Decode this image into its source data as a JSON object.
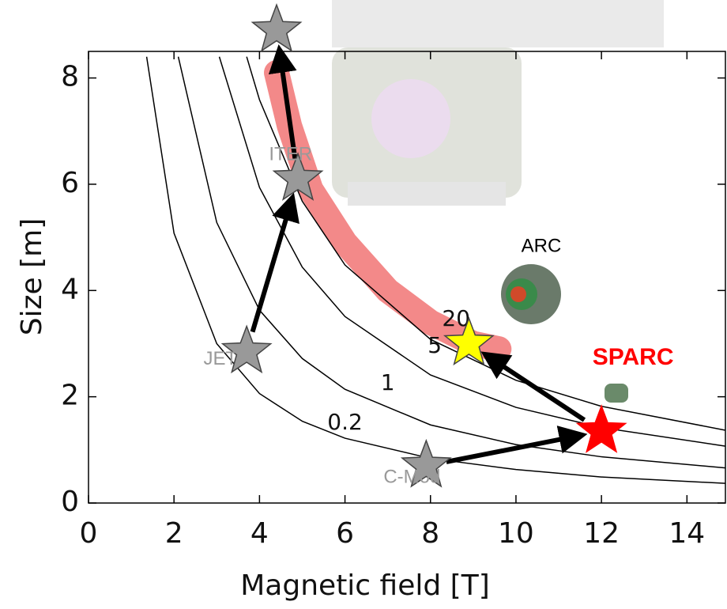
{
  "chart_data": {
    "type": "line",
    "x_label": "Magnetic field [T]",
    "y_label": "Size [m]",
    "xlim": [
      0,
      14.9
    ],
    "ylim": [
      0,
      8.5
    ],
    "xticks": [
      0,
      2,
      4,
      6,
      8,
      10,
      12,
      14
    ],
    "yticks": [
      0,
      2,
      4,
      6,
      8
    ],
    "series": [
      {
        "name": "0.2",
        "color": "#000000",
        "x": [
          1.36,
          2,
          3,
          4,
          5,
          6,
          8,
          10,
          12,
          14.9
        ],
        "values": [
          8.4,
          5.08,
          3.0,
          2.06,
          1.54,
          1.22,
          0.84,
          0.63,
          0.49,
          0.37
        ]
      },
      {
        "name": "1",
        "color": "#000000",
        "x": [
          2.1,
          3,
          4,
          5,
          6,
          8,
          10,
          12,
          14.9
        ],
        "values": [
          8.4,
          5.28,
          3.63,
          2.72,
          2.14,
          1.47,
          1.1,
          0.87,
          0.66
        ]
      },
      {
        "name": "5",
        "color": "#000000",
        "x": [
          3.06,
          4,
          5,
          6,
          8,
          10,
          12,
          14.9
        ],
        "values": [
          8.4,
          5.94,
          4.44,
          3.51,
          2.41,
          1.8,
          1.42,
          1.07
        ]
      },
      {
        "name": "20",
        "color": "#000000",
        "x": [
          3.7,
          4,
          5,
          6,
          8,
          10,
          12,
          14.9
        ],
        "values": [
          8.4,
          7.59,
          5.68,
          4.48,
          3.08,
          2.31,
          1.82,
          1.37
        ]
      }
    ],
    "band": {
      "color": "#f06b6b",
      "x": [
        4.4,
        4.7,
        5.2,
        6.0,
        7.0,
        8.0,
        9.0,
        9.6
      ],
      "values": [
        8.1,
        7.1,
        5.9,
        4.9,
        4.0,
        3.4,
        3.0,
        2.9
      ]
    },
    "points": [
      {
        "label": "JET",
        "x": 3.7,
        "y": 2.85,
        "color": "#999999"
      },
      {
        "label": "ITER",
        "x": 4.9,
        "y": 6.1,
        "color": "#999999"
      },
      {
        "x": 4.4,
        "y": 8.9,
        "color": "#999999"
      },
      {
        "label": "C-Mod",
        "x": 7.9,
        "y": 0.7,
        "color": "#999999"
      },
      {
        "label": "SPARC",
        "x": 12.0,
        "y": 1.35,
        "color": "#ff0000"
      },
      {
        "x": 8.9,
        "y": 3.0,
        "color": "#ffff00"
      }
    ],
    "annotation": "ARC"
  }
}
